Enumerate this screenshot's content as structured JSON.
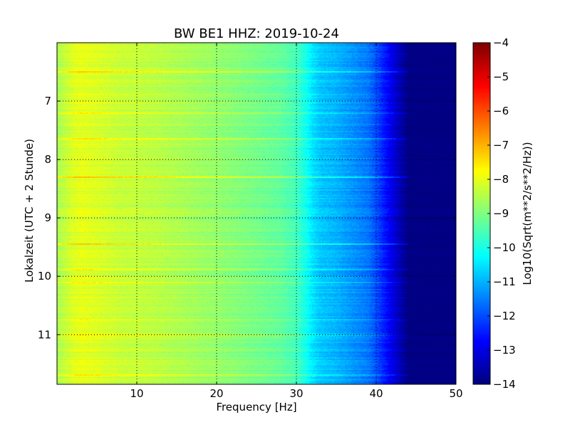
{
  "chart_data": {
    "type": "heatmap",
    "title": "BW BE1 HHZ: 2019-10-24",
    "xlabel": "Frequency [Hz]",
    "ylabel": "Lokalzeit (UTC + 2 Stunde)",
    "xlim": [
      0,
      50
    ],
    "ylim": [
      6.0,
      11.85
    ],
    "y_inverted": true,
    "x_ticks": [
      "10",
      "20",
      "30",
      "40",
      "50"
    ],
    "x_tick_values": [
      10,
      20,
      30,
      40,
      50
    ],
    "y_ticks": [
      "7",
      "8",
      "9",
      "10",
      "11"
    ],
    "y_tick_values": [
      7,
      8,
      9,
      10,
      11
    ],
    "grid": true,
    "colormap": "jet",
    "colorbar": {
      "label": "Log10(Sqrt(m**2/s**2/Hz))",
      "range": [
        -14,
        -4
      ],
      "ticks": [
        "−4",
        "−5",
        "−6",
        "−7",
        "−8",
        "−9",
        "−10",
        "−11",
        "−12",
        "−13",
        "−14"
      ],
      "tick_values": [
        -4,
        -5,
        -6,
        -7,
        -8,
        -9,
        -10,
        -11,
        -12,
        -13,
        -14
      ]
    },
    "spectrum_profile": {
      "frequency_hz": [
        0,
        2,
        3,
        5,
        8,
        12,
        16,
        20,
        25,
        28,
        30,
        31,
        32,
        33,
        35,
        37,
        39,
        40,
        41,
        42,
        43,
        44,
        45,
        50
      ],
      "log10_amplitude": [
        -8.6,
        -8.1,
        -8.0,
        -8.1,
        -8.3,
        -8.4,
        -8.6,
        -8.8,
        -9.1,
        -9.3,
        -9.6,
        -10.0,
        -10.5,
        -10.8,
        -11.0,
        -11.3,
        -11.6,
        -12.0,
        -12.5,
        -13.0,
        -13.5,
        -14.0,
        -14.0,
        -14.0
      ]
    },
    "bright_bands_hours": [
      6.5,
      7.2,
      7.65,
      8.3,
      9.45,
      9.88,
      10.1,
      10.75,
      11.0,
      11.7
    ]
  }
}
